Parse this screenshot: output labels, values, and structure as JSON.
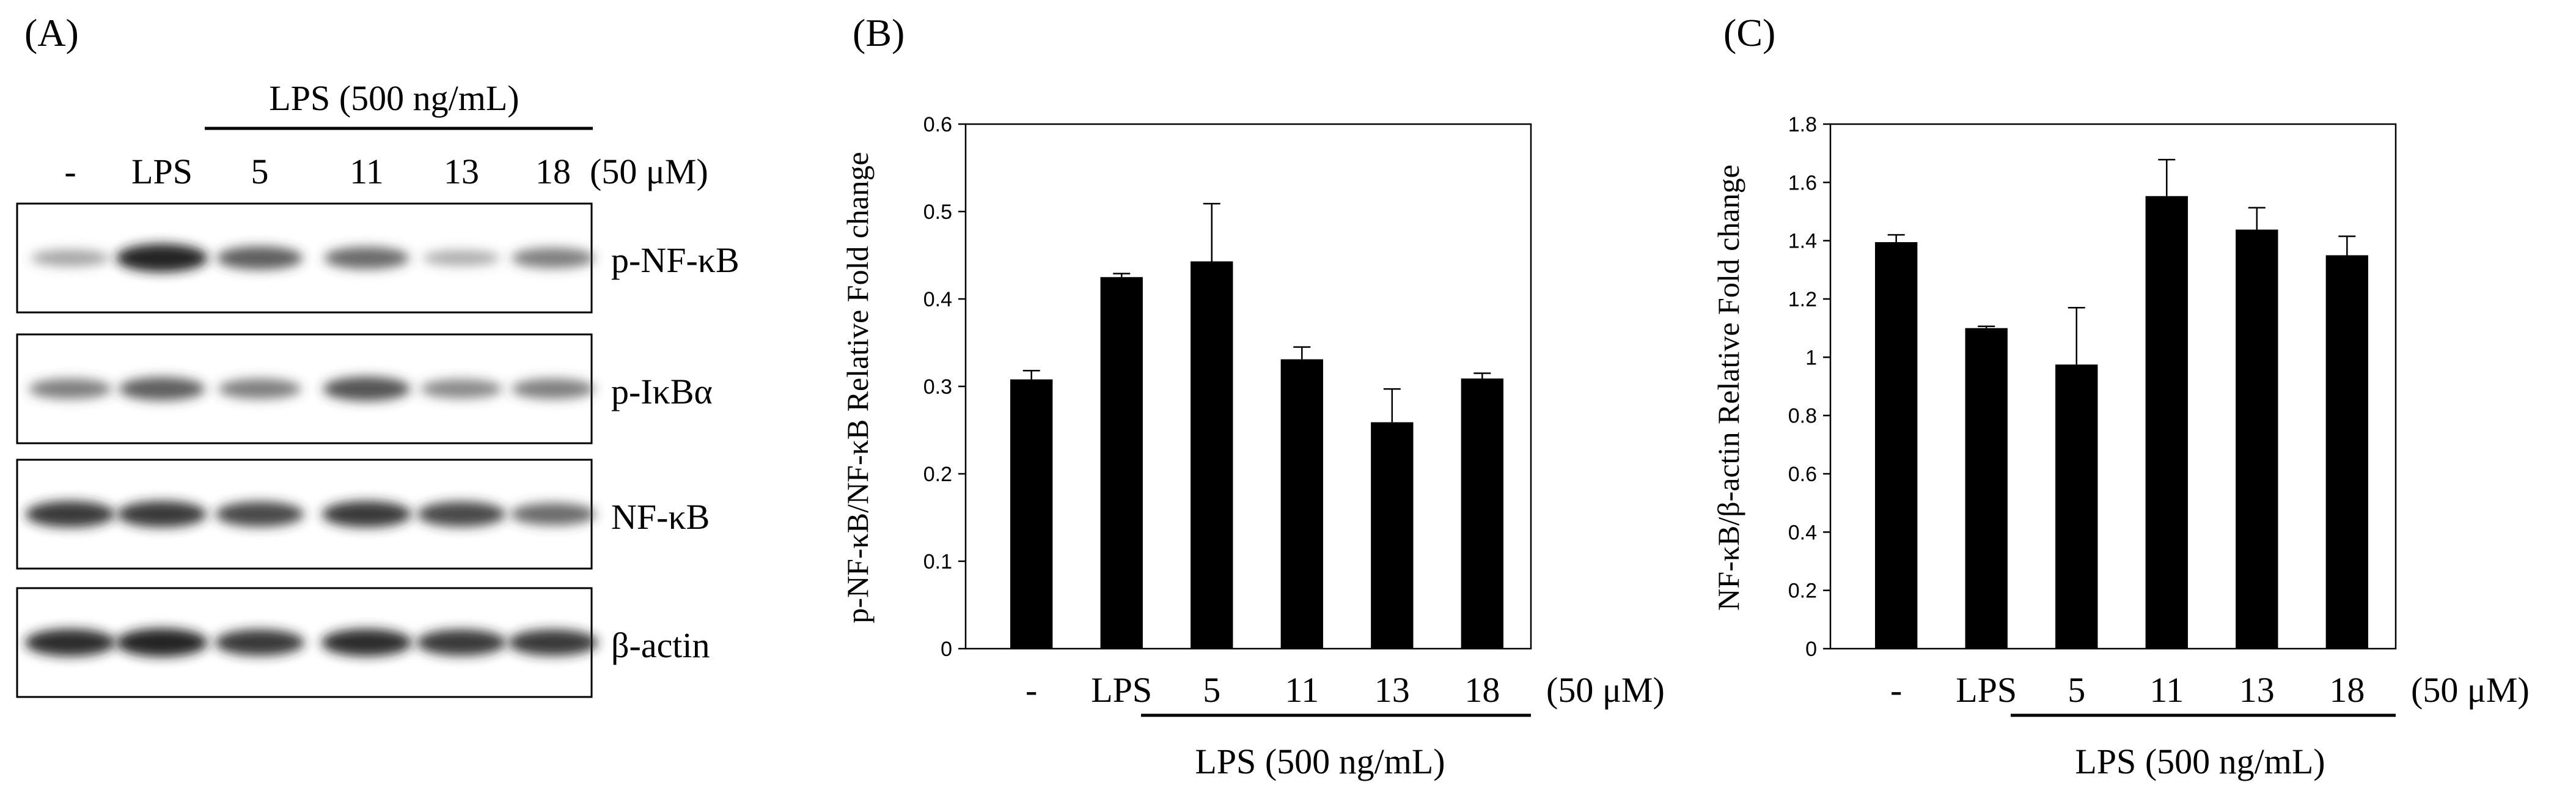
{
  "panel_a": {
    "letter": "(A)",
    "treatment_label": "LPS (500 ng/mL)",
    "lane_labels": [
      "-",
      "LPS",
      "5",
      "11",
      "13",
      "18"
    ],
    "concentration": "(50 μM)",
    "rows": [
      {
        "label": "p-NF-κB",
        "intensity": [
          0.35,
          0.95,
          0.7,
          0.65,
          0.3,
          0.55
        ]
      },
      {
        "label": "p-IκBα",
        "intensity": [
          0.55,
          0.7,
          0.55,
          0.75,
          0.5,
          0.55
        ]
      },
      {
        "label": "NF-κB",
        "intensity": [
          0.85,
          0.85,
          0.8,
          0.85,
          0.8,
          0.65
        ]
      },
      {
        "label": "β-actin",
        "intensity": [
          0.9,
          0.95,
          0.85,
          0.9,
          0.85,
          0.85
        ]
      }
    ]
  },
  "chart_data": [
    {
      "type": "bar",
      "letter": "(B)",
      "categories": [
        "-",
        "LPS",
        "5",
        "11",
        "13",
        "18"
      ],
      "values": [
        0.308,
        0.425,
        0.443,
        0.331,
        0.259,
        0.309
      ],
      "errors": [
        0.01,
        0.004,
        0.066,
        0.014,
        0.038,
        0.006
      ],
      "ylabel": "p-NF-κB/NF-κB Relative Fold change",
      "ylim": [
        0,
        0.6
      ],
      "ticks": [
        "0",
        "0.1",
        "0.2",
        "0.3",
        "0.4",
        "0.5",
        "0.6"
      ],
      "concentration": "(50 μM)",
      "treatment_label": "LPS (500 ng/mL)",
      "grid": false,
      "bar_color": "#000000"
    },
    {
      "type": "bar",
      "letter": "(C)",
      "categories": [
        "-",
        "LPS",
        "5",
        "11",
        "13",
        "18"
      ],
      "values": [
        1.395,
        1.1,
        0.975,
        1.553,
        1.438,
        1.35
      ],
      "errors": [
        0.025,
        0.006,
        0.195,
        0.125,
        0.075,
        0.065
      ],
      "ylabel": "NF-κB/β-actin Relative Fold change",
      "ylim": [
        0,
        1.8
      ],
      "ticks": [
        "0",
        "0.2",
        "0.4",
        "0.6",
        "0.8",
        "1",
        "1.2",
        "1.4",
        "1.6",
        "1.8"
      ],
      "concentration": "(50 μM)",
      "treatment_label": "LPS (500 ng/mL)",
      "grid": false,
      "bar_color": "#000000"
    }
  ]
}
